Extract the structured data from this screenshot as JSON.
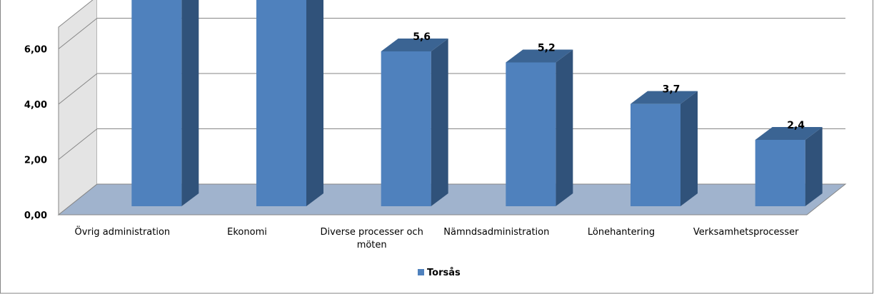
{
  "chart_data": {
    "type": "bar",
    "title": "",
    "xlabel": "",
    "ylabel": "",
    "categories": [
      "Övrig administration",
      "Ekonomi",
      "Diverse processer och möten",
      "Nämndsadministration",
      "Lönehantering",
      "Verksamhetsprocesser"
    ],
    "series": [
      {
        "name": "Torsås",
        "values": [
          8.5,
          8.5,
          5.6,
          5.2,
          3.7,
          2.4
        ]
      }
    ],
    "value_labels": [
      "",
      "",
      "5,6",
      "5,2",
      "3,7",
      "2,4"
    ],
    "y_ticks": [
      "0,00",
      "2,00",
      "4,00",
      "6,00"
    ],
    "y_tick_values": [
      0,
      2,
      4,
      6
    ],
    "ylim": [
      0,
      8
    ],
    "grid": true,
    "legend_position": "bottom",
    "three_d": true,
    "colors": {
      "bar_front": "#4f81bd",
      "bar_side": "#30527a",
      "bar_top": "#3b6493",
      "floor": "#a0b3cd",
      "back_wall": "#ffffff",
      "side_wall": "#e4e4e4",
      "gridline": "#868686",
      "frame": "#868686"
    }
  }
}
